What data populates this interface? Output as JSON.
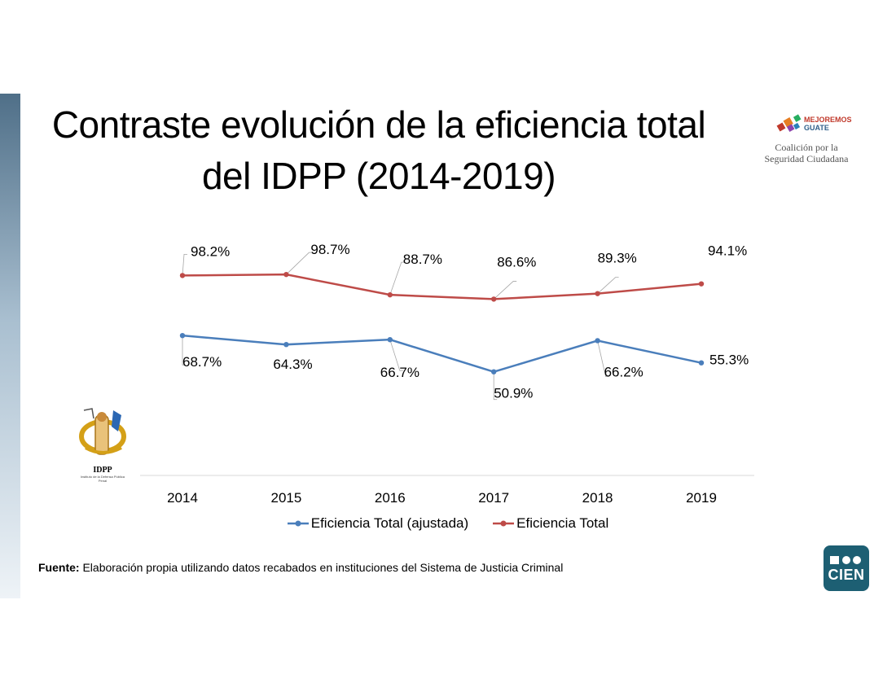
{
  "slide": {
    "title_line1": "Contraste evolución de la eficiencia total",
    "title_line2": "del IDPP (2014-2019)",
    "source_label": "Fuente:",
    "source_text": "Elaboración propia utilizando datos recabados en instituciones del Sistema de Justicia Criminal"
  },
  "logos": {
    "mejoremos_line1": "MEJOREMOS",
    "mejoremos_line2": "GUATE",
    "coalicion_line1": "Coalición por la",
    "coalicion_line2": "Seguridad Ciudadana",
    "idpp_text": "IDPP",
    "idpp_sub": "Instituto de la Defensa Pública Penal",
    "cien_text": "CIEN"
  },
  "chart_data": {
    "type": "line",
    "title": "",
    "xlabel": "",
    "ylabel": "",
    "categories": [
      "2014",
      "2015",
      "2016",
      "2017",
      "2018",
      "2019"
    ],
    "ylim": [
      0,
      110
    ],
    "grid": false,
    "legend_position": "bottom",
    "series": [
      {
        "name": "Eficiencia Total (ajustada)",
        "color": "#4a7ebb",
        "values": [
          68.7,
          64.3,
          66.7,
          50.9,
          66.2,
          55.3
        ],
        "labels": [
          "68.7%",
          "64.3%",
          "66.7%",
          "50.9%",
          "66.2%",
          "55.3%"
        ]
      },
      {
        "name": "Eficiencia Total",
        "color": "#be4b48",
        "values": [
          98.2,
          98.7,
          88.7,
          86.6,
          89.3,
          94.1
        ],
        "labels": [
          "98.2%",
          "98.7%",
          "88.7%",
          "86.6%",
          "89.3%",
          "94.1%"
        ]
      }
    ]
  }
}
